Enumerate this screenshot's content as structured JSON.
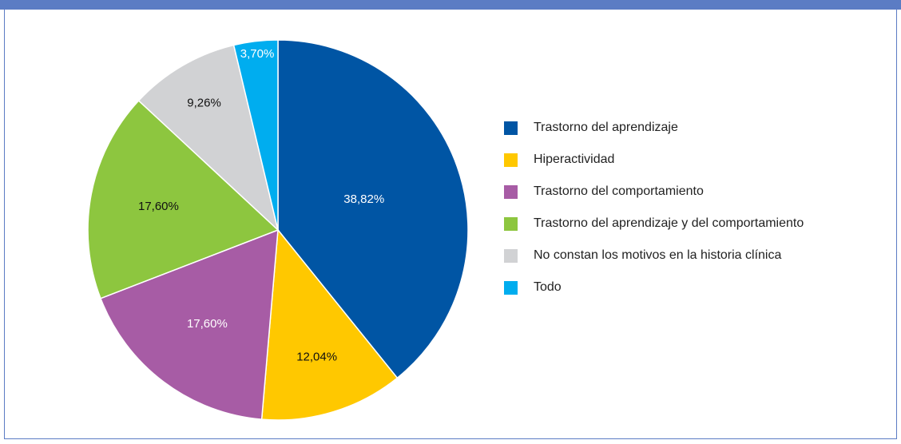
{
  "chart_data": {
    "type": "pie",
    "categories": [
      "Trastorno del aprendizaje",
      "Hiperactividad",
      "Trastorno del comportamiento",
      "Trastorno del aprendizaje y del comportamiento",
      "No constan los motivos en la historia clínica",
      "Todo"
    ],
    "values": [
      38.82,
      12.04,
      17.6,
      17.6,
      9.26,
      3.7
    ],
    "value_labels": [
      "38,82%",
      "12,04%",
      "17,60%",
      "17,60%",
      "9,26%",
      "3,70%"
    ],
    "colors": [
      "#0055a4",
      "#ffc800",
      "#a75ca5",
      "#8dc63f",
      "#d1d2d4",
      "#00adef"
    ],
    "legend": "right"
  }
}
